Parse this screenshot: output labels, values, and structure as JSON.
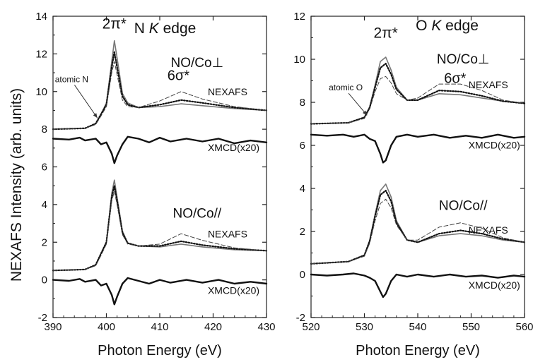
{
  "figure": {
    "ylabel": "NEXAFS Intensity  (arb. units)"
  },
  "chart_data": [
    {
      "type": "line",
      "xlabel": "Photon Energy  (eV)",
      "ylabel": "NEXAFS Intensity  (arb. units)",
      "xlim": [
        390,
        430
      ],
      "ylim": [
        -2,
        14
      ],
      "xticks": [
        390,
        400,
        410,
        420,
        430
      ],
      "yticks": [
        -2,
        0,
        2,
        4,
        6,
        8,
        10,
        12,
        14
      ],
      "grid": false,
      "annotations": {
        "edge_label": "N",
        "edge_label_italic": "K",
        "edge_label_suffix": " edge",
        "pi_label": "2π*",
        "sigma_label": "6σ*",
        "atomic_label": "atomic N",
        "perp_label": "NO/Co⊥",
        "par_label": "NO/Co//",
        "nexafs_upper": "NEXAFS",
        "nexafs_lower": "NEXAFS",
        "xmcd_upper": "XMCD(x20)",
        "xmcd_lower": "XMCD(x20)"
      },
      "series": [
        {
          "group": "perp",
          "style": "solid",
          "x": [
            390,
            396,
            398,
            399,
            400,
            401,
            401.5,
            402,
            403,
            404,
            406,
            410,
            414,
            418,
            424,
            430
          ],
          "y": [
            8.0,
            8.05,
            8.3,
            8.8,
            9.4,
            11.6,
            12.7,
            11.8,
            9.9,
            9.4,
            9.15,
            9.2,
            9.35,
            9.25,
            9.1,
            9.0
          ]
        },
        {
          "group": "perp",
          "style": "dotted",
          "x": [
            390,
            396,
            398,
            399,
            400,
            401,
            401.5,
            402,
            403,
            404,
            406,
            410,
            414,
            418,
            424,
            430
          ],
          "y": [
            8.0,
            8.05,
            8.3,
            8.8,
            9.3,
            11.3,
            12.1,
            11.3,
            9.75,
            9.3,
            9.15,
            9.3,
            9.55,
            9.4,
            9.15,
            9.0
          ]
        },
        {
          "group": "perp",
          "style": "dashed",
          "x": [
            390,
            396,
            398,
            399,
            400,
            401,
            401.5,
            402,
            403,
            404,
            406,
            410,
            414,
            418,
            424,
            430
          ],
          "y": [
            8.0,
            8.05,
            8.25,
            8.7,
            9.2,
            11.0,
            11.6,
            10.9,
            9.55,
            9.2,
            9.15,
            9.5,
            10.0,
            9.6,
            9.2,
            9.0
          ]
        },
        {
          "group": "perp_xmcd",
          "style": "solid",
          "x": [
            390,
            393,
            395,
            396,
            398,
            399,
            400,
            401,
            401.5,
            402,
            403,
            404,
            406,
            408,
            410,
            412,
            415,
            418,
            421,
            424,
            427,
            430
          ],
          "y": [
            7.5,
            7.45,
            7.55,
            7.4,
            7.5,
            7.2,
            7.3,
            6.7,
            6.2,
            6.6,
            7.2,
            7.6,
            7.5,
            7.3,
            7.55,
            7.35,
            7.5,
            7.35,
            7.5,
            7.25,
            7.4,
            7.3
          ]
        },
        {
          "group": "par",
          "style": "solid",
          "x": [
            390,
            396,
            398,
            399,
            400,
            401,
            401.5,
            402,
            403,
            404,
            406,
            410,
            414,
            418,
            424,
            430
          ],
          "y": [
            0.5,
            0.55,
            0.8,
            1.4,
            2.0,
            4.6,
            5.3,
            4.4,
            2.6,
            1.95,
            1.8,
            1.75,
            1.9,
            1.75,
            1.6,
            1.55
          ]
        },
        {
          "group": "par",
          "style": "dotted",
          "x": [
            390,
            396,
            398,
            399,
            400,
            401,
            401.5,
            402,
            403,
            404,
            406,
            410,
            414,
            418,
            424,
            430
          ],
          "y": [
            0.5,
            0.55,
            0.8,
            1.4,
            2.0,
            4.4,
            5.0,
            4.2,
            2.5,
            1.95,
            1.8,
            1.8,
            2.05,
            1.85,
            1.65,
            1.55
          ]
        },
        {
          "group": "par",
          "style": "dashed",
          "x": [
            390,
            396,
            398,
            399,
            400,
            401,
            401.5,
            402,
            403,
            404,
            406,
            410,
            414,
            418,
            424,
            430
          ],
          "y": [
            0.5,
            0.55,
            0.75,
            1.3,
            1.9,
            4.2,
            4.7,
            4.0,
            2.4,
            1.9,
            1.8,
            1.9,
            2.45,
            2.1,
            1.7,
            1.55
          ]
        },
        {
          "group": "par_xmcd",
          "style": "solid",
          "x": [
            390,
            393,
            395,
            396,
            398,
            399,
            400,
            401,
            401.5,
            402,
            403,
            404,
            406,
            408,
            410,
            412,
            415,
            418,
            421,
            424,
            427,
            430
          ],
          "y": [
            0.0,
            -0.05,
            0.05,
            -0.1,
            0.0,
            -0.3,
            -0.2,
            -0.8,
            -1.3,
            -0.9,
            -0.2,
            0.1,
            -0.05,
            -0.2,
            0.0,
            -0.15,
            0.0,
            -0.15,
            0.0,
            -0.2,
            -0.1,
            -0.2
          ]
        }
      ]
    },
    {
      "type": "line",
      "xlabel": "Photon Energy  (eV)",
      "ylabel": "",
      "xlim": [
        520,
        560
      ],
      "ylim": [
        -2,
        12
      ],
      "xticks": [
        520,
        530,
        540,
        550,
        560
      ],
      "yticks": [
        -2,
        0,
        2,
        4,
        6,
        8,
        10,
        12
      ],
      "grid": false,
      "annotations": {
        "edge_label": "O",
        "edge_label_italic": "K",
        "edge_label_suffix": " edge",
        "pi_label": "2π*",
        "sigma_label": "6σ*",
        "atomic_label": "atomic O",
        "perp_label": "NO/Co⊥",
        "par_label": "NO/Co//",
        "nexafs_upper": "NEXAFS",
        "nexafs_lower": "NEXAFS",
        "xmcd_upper": "XMCD(x20)",
        "xmcd_lower": "XMCD(x20)"
      },
      "series": [
        {
          "group": "perp",
          "style": "solid",
          "x": [
            520,
            527,
            530,
            531,
            532,
            533,
            534,
            535,
            536,
            538,
            540,
            544,
            548,
            552,
            556,
            560
          ],
          "y": [
            7.0,
            7.05,
            7.3,
            7.8,
            8.8,
            9.9,
            10.1,
            9.5,
            8.7,
            8.1,
            8.1,
            8.4,
            8.35,
            8.2,
            8.05,
            7.95
          ]
        },
        {
          "group": "perp",
          "style": "dotted",
          "x": [
            520,
            527,
            530,
            531,
            532,
            533,
            534,
            535,
            536,
            538,
            540,
            544,
            548,
            552,
            556,
            560
          ],
          "y": [
            7.0,
            7.05,
            7.3,
            7.75,
            8.7,
            9.6,
            9.8,
            9.3,
            8.6,
            8.1,
            8.1,
            8.55,
            8.5,
            8.3,
            8.05,
            7.95
          ]
        },
        {
          "group": "perp",
          "style": "dashed",
          "x": [
            520,
            527,
            530,
            531,
            532,
            533,
            534,
            535,
            536,
            538,
            540,
            544,
            548,
            552,
            556,
            560
          ],
          "y": [
            7.0,
            7.05,
            7.25,
            7.7,
            8.5,
            9.1,
            9.2,
            8.9,
            8.4,
            8.1,
            8.2,
            8.85,
            8.85,
            8.55,
            8.1,
            7.95
          ]
        },
        {
          "group": "perp_xmcd",
          "style": "solid",
          "x": [
            520,
            523,
            526,
            528,
            530,
            531,
            532,
            533,
            533.5,
            534,
            535,
            536,
            538,
            540,
            543,
            546,
            549,
            552,
            555,
            558,
            560
          ],
          "y": [
            6.5,
            6.45,
            6.5,
            6.4,
            6.5,
            6.3,
            6.2,
            5.6,
            5.2,
            5.3,
            6.0,
            6.4,
            6.5,
            6.4,
            6.5,
            6.35,
            6.45,
            6.35,
            6.5,
            6.35,
            6.4
          ]
        },
        {
          "group": "par",
          "style": "solid",
          "x": [
            520,
            527,
            530,
            531,
            532,
            533,
            534,
            535,
            536,
            538,
            540,
            544,
            548,
            552,
            556,
            560
          ],
          "y": [
            0.5,
            0.6,
            0.9,
            1.6,
            2.8,
            3.9,
            4.2,
            3.6,
            2.5,
            1.6,
            1.5,
            1.8,
            1.9,
            1.8,
            1.6,
            1.5
          ]
        },
        {
          "group": "par",
          "style": "dotted",
          "x": [
            520,
            527,
            530,
            531,
            532,
            533,
            534,
            535,
            536,
            538,
            540,
            544,
            548,
            552,
            556,
            560
          ],
          "y": [
            0.5,
            0.6,
            0.9,
            1.55,
            2.7,
            3.7,
            3.9,
            3.4,
            2.4,
            1.6,
            1.5,
            1.9,
            2.05,
            1.9,
            1.65,
            1.5
          ]
        },
        {
          "group": "par",
          "style": "dashed",
          "x": [
            520,
            527,
            530,
            531,
            532,
            533,
            534,
            535,
            536,
            538,
            540,
            544,
            548,
            552,
            556,
            560
          ],
          "y": [
            0.5,
            0.6,
            0.85,
            1.45,
            2.5,
            3.3,
            3.5,
            3.1,
            2.3,
            1.6,
            1.6,
            2.2,
            2.4,
            2.15,
            1.7,
            1.5
          ]
        },
        {
          "group": "par_xmcd",
          "style": "solid",
          "x": [
            520,
            523,
            526,
            528,
            530,
            531,
            532,
            533,
            533.5,
            534,
            535,
            536,
            538,
            540,
            543,
            546,
            549,
            552,
            555,
            558,
            560
          ],
          "y": [
            0.0,
            -0.05,
            0.0,
            0.05,
            -0.05,
            -0.15,
            -0.3,
            -0.8,
            -1.05,
            -0.9,
            -0.3,
            0.0,
            -0.1,
            0.0,
            -0.1,
            0.0,
            -0.1,
            -0.05,
            -0.15,
            -0.05,
            -0.1
          ]
        }
      ]
    }
  ]
}
